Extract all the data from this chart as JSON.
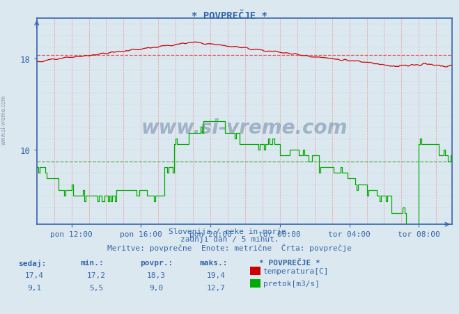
{
  "title": "* POVPREČJE *",
  "bg_color": "#dce8f0",
  "plot_bg_color": "#dce8f0",
  "line_color_temp": "#cc0000",
  "line_color_flow": "#00aa00",
  "avg_line_color_temp": "#dd5555",
  "avg_line_color_flow": "#55aa55",
  "axis_color": "#3366aa",
  "text_color": "#3366aa",
  "subtitle1": "Slovenija / reke in morje.",
  "subtitle2": "zadnji dan / 5 minut.",
  "subtitle3": "Meritve: povprečne  Enote: metrične  Črta: povprečje",
  "legend_title": "* POVPREČJE *",
  "legend_items": [
    {
      "label": "temperatura[C]",
      "color": "#cc0000"
    },
    {
      "label": "pretok[m3/s]",
      "color": "#00aa00"
    }
  ],
  "stats_headers": [
    "sedaj:",
    "min.:",
    "povpr.:",
    "maks.:"
  ],
  "stats_temp": [
    17.4,
    17.2,
    18.3,
    19.4
  ],
  "stats_flow": [
    9.1,
    5.5,
    9.0,
    12.7
  ],
  "xtick_labels": [
    "pon 12:00",
    "pon 16:00",
    "pon 20:00",
    "tor 00:00",
    "tor 04:00",
    "tor 08:00"
  ],
  "yticks_left": [
    10,
    18
  ],
  "temp_avg": 18.3,
  "flow_avg": 9.0,
  "ymin": 3.5,
  "ymax": 21.5,
  "watermark": "www.si-vreme.com"
}
